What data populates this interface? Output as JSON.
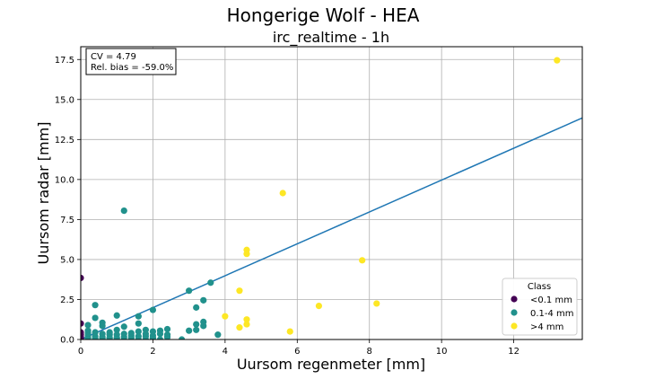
{
  "chart_data": {
    "type": "scatter",
    "title": "Hongerige Wolf - HEA",
    "subtitle": "irc_realtime - 1h",
    "xlabel": "Uursom regenmeter [mm]",
    "ylabel": "Uursom radar [mm]",
    "xlim": [
      0,
      13.9
    ],
    "ylim": [
      0,
      18.3
    ],
    "xticks": [
      0,
      2,
      4,
      6,
      8,
      10,
      12
    ],
    "yticks": [
      0.0,
      2.5,
      5.0,
      7.5,
      10.0,
      12.5,
      15.0,
      17.5
    ],
    "xtick_labels": [
      "0",
      "2",
      "4",
      "6",
      "8",
      "10",
      "12"
    ],
    "ytick_labels": [
      "0.0",
      "2.5",
      "5.0",
      "7.5",
      "10.0",
      "12.5",
      "15.0",
      "17.5"
    ],
    "grid": true,
    "stats_box": {
      "cv": "CV = 4.79",
      "bias": "Rel. bias = -59.0%"
    },
    "fit_line": {
      "color": "#1f77b4",
      "points": [
        [
          0,
          0
        ],
        [
          13.9,
          13.85
        ]
      ]
    },
    "legend": {
      "title": "Class",
      "placement": "lower right"
    },
    "series": [
      {
        "name": "<0.1 mm",
        "color": "#440154",
        "points": [
          [
            0,
            3.85
          ],
          [
            0,
            1.0
          ],
          [
            0,
            0.45
          ],
          [
            0,
            0.3
          ],
          [
            0,
            0.15
          ],
          [
            0,
            0.05
          ],
          [
            0,
            0.0
          ]
        ]
      },
      {
        "name": "0.1-4 mm",
        "color": "#21918c",
        "points": [
          [
            1.2,
            8.05
          ],
          [
            3.6,
            3.55
          ],
          [
            3.0,
            3.05
          ],
          [
            3.4,
            2.45
          ],
          [
            0.4,
            2.15
          ],
          [
            3.2,
            2.0
          ],
          [
            2.0,
            1.85
          ],
          [
            1.0,
            1.5
          ],
          [
            1.6,
            1.45
          ],
          [
            0.4,
            1.35
          ],
          [
            3.4,
            1.1
          ],
          [
            0.6,
            1.05
          ],
          [
            1.6,
            1.0
          ],
          [
            3.2,
            0.95
          ],
          [
            0.2,
            0.9
          ],
          [
            0.6,
            0.85
          ],
          [
            3.4,
            0.85
          ],
          [
            1.2,
            0.8
          ],
          [
            2.4,
            0.65
          ],
          [
            3.0,
            0.55
          ],
          [
            0.2,
            0.55
          ],
          [
            3.2,
            0.6
          ],
          [
            1.0,
            0.6
          ],
          [
            1.8,
            0.6
          ],
          [
            2.2,
            0.55
          ],
          [
            0.8,
            0.45
          ],
          [
            1.6,
            0.5
          ],
          [
            2.0,
            0.5
          ],
          [
            0.4,
            0.45
          ],
          [
            1.4,
            0.4
          ],
          [
            0.2,
            0.4
          ],
          [
            0.6,
            0.35
          ],
          [
            1.2,
            0.35
          ],
          [
            1.8,
            0.35
          ],
          [
            2.2,
            0.35
          ],
          [
            2.4,
            0.3
          ],
          [
            3.8,
            0.3
          ],
          [
            0.8,
            0.3
          ],
          [
            1.0,
            0.3
          ],
          [
            1.4,
            0.25
          ],
          [
            2.0,
            0.25
          ],
          [
            0.2,
            0.25
          ],
          [
            0.4,
            0.2
          ],
          [
            1.6,
            0.2
          ],
          [
            1.8,
            0.2
          ],
          [
            0.6,
            0.15
          ],
          [
            1.2,
            0.15
          ],
          [
            2.4,
            0.15
          ],
          [
            0.2,
            0.1
          ],
          [
            0.8,
            0.1
          ],
          [
            1.0,
            0.1
          ],
          [
            1.4,
            0.1
          ],
          [
            2.0,
            0.1
          ],
          [
            0.4,
            0.05
          ],
          [
            0.6,
            0.05
          ],
          [
            1.6,
            0.0
          ],
          [
            2.8,
            0.0
          ],
          [
            0.2,
            0.0
          ],
          [
            0.8,
            0.0
          ],
          [
            1.2,
            0.0
          ],
          [
            1.8,
            0.0
          ],
          [
            2.2,
            0.0
          ],
          [
            1.0,
            0.0
          ],
          [
            0.4,
            0.0
          ]
        ]
      },
      {
        "name": ">4 mm",
        "color": "#fde725",
        "points": [
          [
            13.2,
            17.45
          ],
          [
            5.6,
            9.15
          ],
          [
            4.6,
            5.6
          ],
          [
            4.6,
            5.35
          ],
          [
            7.8,
            4.95
          ],
          [
            4.4,
            3.05
          ],
          [
            8.2,
            2.25
          ],
          [
            6.6,
            2.1
          ],
          [
            4.0,
            1.45
          ],
          [
            4.6,
            1.25
          ],
          [
            4.6,
            0.95
          ],
          [
            4.4,
            0.75
          ],
          [
            5.8,
            0.5
          ]
        ]
      }
    ]
  }
}
